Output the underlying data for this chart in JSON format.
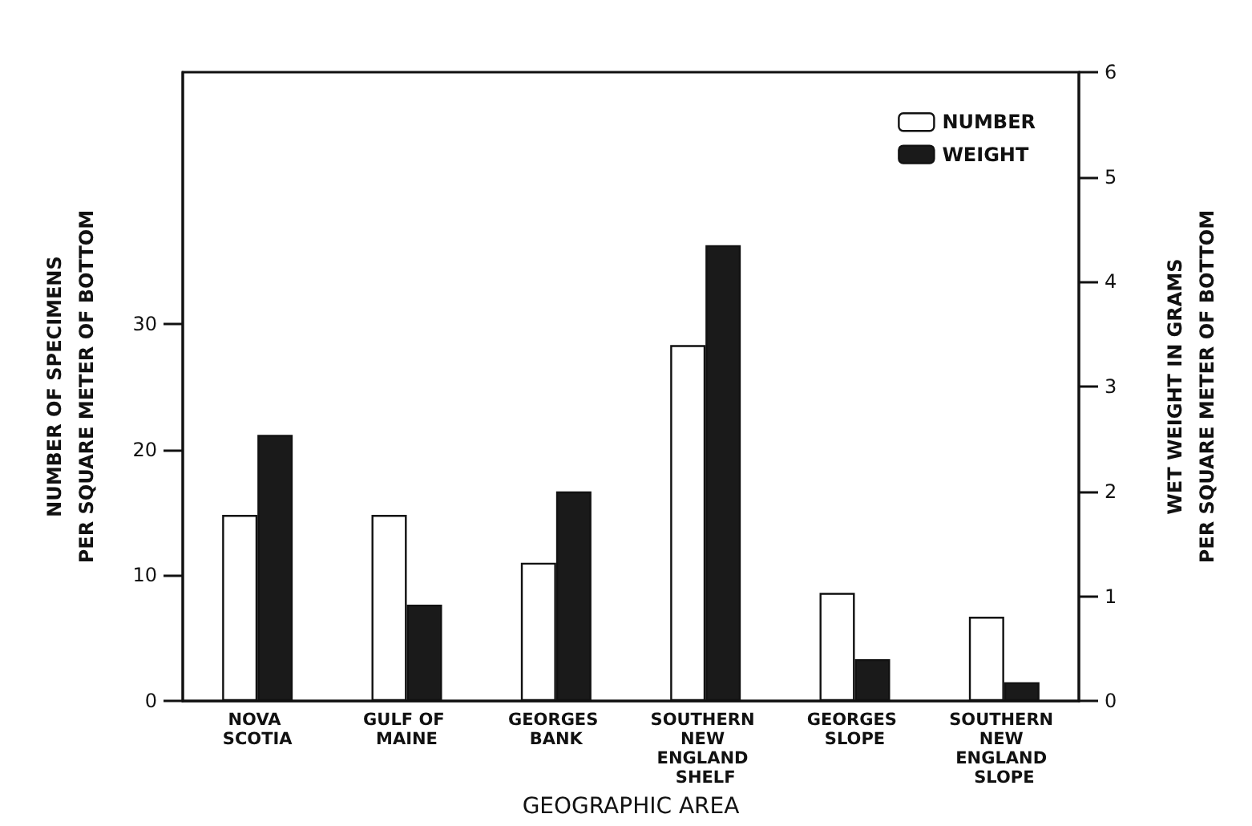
{
  "chart_data": {
    "type": "bar",
    "xlabel": "GEOGRAPHIC AREA",
    "ylabel": "NUMBER OF SPECIMENS\nPER SQUARE METER OF BOTTOM",
    "y2label": "WET WEIGHT IN GRAMS\nPER SQUARE METER OF BOTTOM",
    "categories": [
      "NOVA SCOTIA",
      "GULF OF MAINE",
      "GEORGES BANK",
      "SOUTHERN NEW ENGLAND SHELF",
      "GEORGES SLOPE",
      "SOUTHERN NEW ENGLAND SLOPE"
    ],
    "series": [
      {
        "name": "NUMBER",
        "color": "#ffffff",
        "values": [
          14.8,
          14.8,
          11.0,
          28.3,
          8.6,
          6.7
        ]
      },
      {
        "name": "WEIGHT",
        "color": "#1a1a1a",
        "axis": "y2",
        "values": [
          2.54,
          0.92,
          2.0,
          4.35,
          0.4,
          0.18
        ]
      }
    ],
    "ylim": [
      0,
      50
    ],
    "yticks": [
      0,
      10,
      20,
      30
    ],
    "y2lim": [
      0,
      6
    ],
    "y2ticks": [
      0,
      1,
      2,
      3,
      4,
      5,
      6
    ],
    "grid": false,
    "legend": "top right"
  }
}
